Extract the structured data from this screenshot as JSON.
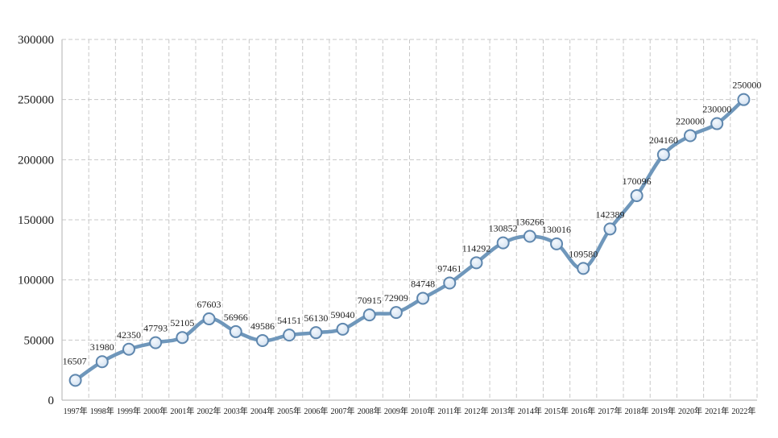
{
  "chart_data": {
    "type": "line",
    "title": "",
    "xlabel": "",
    "ylabel": "",
    "categories": [
      "1997年",
      "1998年",
      "1999年",
      "2000年",
      "2001年",
      "2002年",
      "2003年",
      "2004年",
      "2005年",
      "2006年",
      "2007年",
      "2008年",
      "2009年",
      "2010年",
      "2011年",
      "2012年",
      "2013年",
      "2014年",
      "2015年",
      "2016年",
      "2017年",
      "2018年",
      "2019年",
      "2020年",
      "2021年",
      "2022年"
    ],
    "values": [
      16507,
      31980,
      42350,
      47793,
      52105,
      67603,
      56966,
      49586,
      54151,
      56130,
      59040,
      70915,
      72909,
      84748,
      97461,
      114292,
      130852,
      136266,
      130016,
      109580,
      142389,
      170096,
      204160,
      220000,
      230000,
      250000
    ],
    "data_labels": [
      "16507",
      "31980",
      "42350",
      "47793",
      "52105",
      "67603",
      "56966",
      "49586",
      "54151",
      "56130",
      "59040",
      "70915",
      "72909",
      "84748",
      "97461",
      "114292",
      "130852",
      "136266",
      "130016",
      "109580",
      "142389",
      "170096",
      "204160",
      "220000",
      "230000",
      "250000"
    ],
    "ylim": [
      0,
      300000
    ],
    "yticks": [
      "0",
      "50000",
      "100000",
      "150000",
      "200000",
      "250000",
      "300000"
    ],
    "grid": true,
    "legend": "none",
    "colors": {
      "line": "#6f97bb",
      "marker_fill": "#d4e2f1",
      "marker_stroke": "#5f87ae"
    }
  }
}
